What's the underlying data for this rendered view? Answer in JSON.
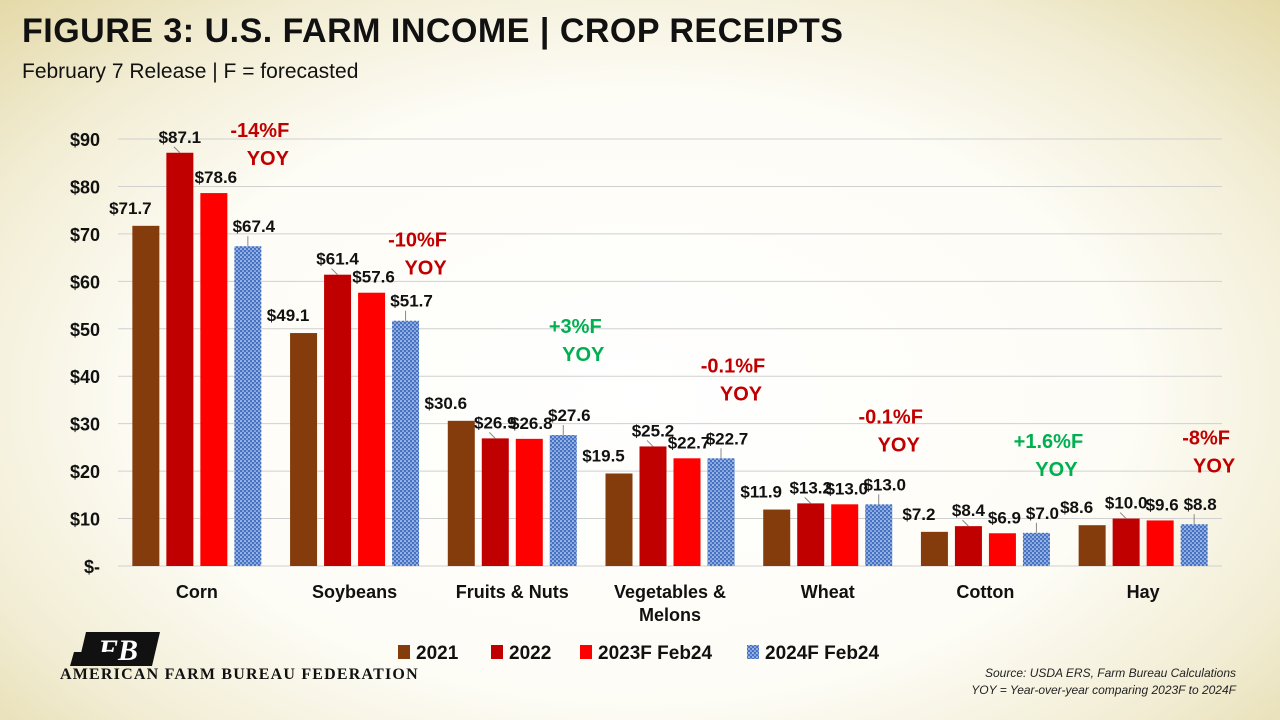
{
  "header": {
    "title": "FIGURE 3: U.S. FARM INCOME | CROP RECEIPTS",
    "subtitle": "February 7 Release | F = forecasted"
  },
  "footer": {
    "org_name": "AMERICAN FARM BUREAU FEDERATION",
    "logo_letters": "FB",
    "source_line1": "Source: USDA ERS, Farm Bureau Calculations",
    "source_line2": "YOY = Year-over-year comparing 2023F to 2024F"
  },
  "colors": {
    "s2021": "#843c0c",
    "s2022": "#c00000",
    "s2023": "#ff0000",
    "s2024": "#4472c4",
    "yoy_negative": "#c00000",
    "yoy_positive": "#00b050"
  },
  "chart_data": {
    "type": "bar",
    "categories": [
      [
        "Corn"
      ],
      [
        "Soybeans"
      ],
      [
        "Fruits & Nuts"
      ],
      [
        "Vegetables &",
        "Melons"
      ],
      [
        "Wheat"
      ],
      [
        "Cotton"
      ],
      [
        "Hay"
      ]
    ],
    "series": [
      {
        "name": "2021",
        "values": [
          71.7,
          49.1,
          30.6,
          19.5,
          11.9,
          7.2,
          8.6
        ],
        "labels": [
          "$71.7",
          "$49.1",
          "$30.6",
          "$19.5",
          "$11.9",
          "$7.2",
          "$8.6"
        ]
      },
      {
        "name": "2022",
        "values": [
          87.1,
          61.4,
          26.9,
          25.2,
          13.2,
          8.4,
          10.0
        ],
        "labels": [
          "$87.1",
          "$61.4",
          "$26.9",
          "$25.2",
          "$13.2",
          "$8.4",
          "$10.0"
        ]
      },
      {
        "name": "2023F Feb24",
        "values": [
          78.6,
          57.6,
          26.8,
          22.7,
          13.0,
          6.9,
          9.6
        ],
        "labels": [
          "$78.6",
          "$57.6",
          "$26.8",
          "$22.7",
          "$13.0",
          "$6.9",
          "$9.6"
        ]
      },
      {
        "name": "2024F Feb24",
        "values": [
          67.4,
          51.7,
          27.6,
          22.7,
          13.0,
          7.0,
          8.8
        ],
        "labels": [
          "$67.4",
          "$51.7",
          "$27.6",
          "$22.7",
          "$13.0",
          "$7.0",
          "$8.8"
        ]
      }
    ],
    "yoy_annotations": [
      {
        "line1": "-14%F",
        "line2": "YOY",
        "sign": "negative"
      },
      {
        "line1": "-10%F",
        "line2": "YOY",
        "sign": "negative"
      },
      {
        "line1": "+3%F",
        "line2": "YOY",
        "sign": "positive"
      },
      {
        "line1": "-0.1%F",
        "line2": "YOY",
        "sign": "negative"
      },
      {
        "line1": "-0.1%F",
        "line2": "YOY",
        "sign": "negative"
      },
      {
        "line1": "+1.6%F",
        "line2": "YOY",
        "sign": "positive"
      },
      {
        "line1": "-8%F",
        "line2": "YOY",
        "sign": "negative"
      }
    ],
    "y_ticks": [
      0,
      10,
      20,
      30,
      40,
      50,
      60,
      70,
      80,
      90
    ],
    "y_tick_labels": [
      "$-",
      "$10",
      "$20",
      "$30",
      "$40",
      "$50",
      "$60",
      "$70",
      "$80",
      "$90"
    ],
    "ylim": [
      0,
      90
    ],
    "grid": true,
    "legend_position": "bottom",
    "title": "FIGURE 3: U.S. FARM INCOME | CROP RECEIPTS",
    "xlabel": "",
    "ylabel": ""
  }
}
